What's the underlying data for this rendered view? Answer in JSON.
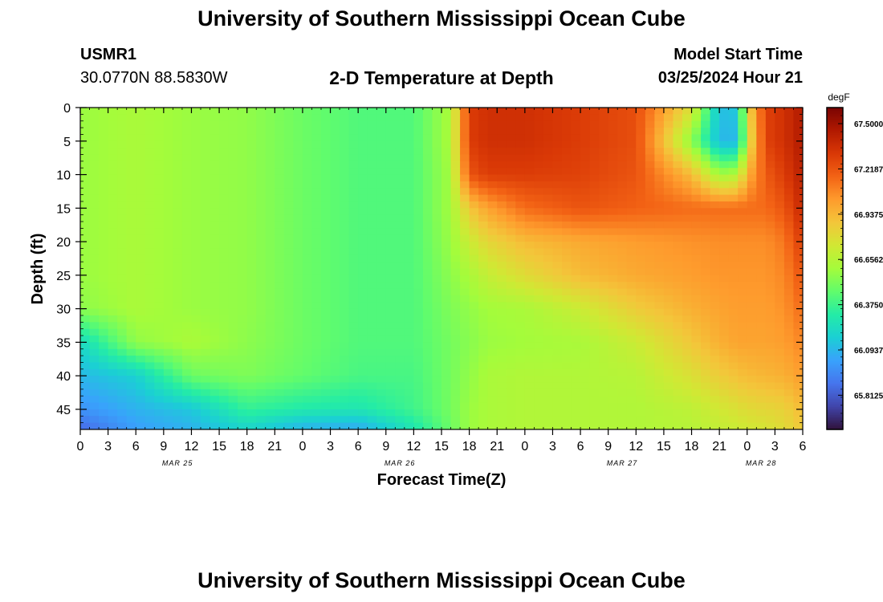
{
  "page": {
    "title": "University of Southern Mississippi Ocean Cube",
    "title_repeat": "University of Southern Mississippi Ocean Cube",
    "station_id": "USMR1",
    "coordinates": "30.0770N  88.5830W",
    "subtitle": "2-D Temperature at Depth",
    "model_start_label": "Model Start Time",
    "model_start_value": "03/25/2024 Hour 21"
  },
  "chart_data": {
    "type": "heatmap",
    "title": "2-D Temperature at Depth",
    "xlabel": "Forecast Time(Z)",
    "ylabel": "Depth (ft)",
    "x_hours_from_start": [
      0,
      78
    ],
    "xlim": [
      0,
      78
    ],
    "ylim": [
      0,
      48
    ],
    "x_tick_labels": [
      "0",
      "3",
      "6",
      "9",
      "12",
      "15",
      "18",
      "21",
      "0",
      "3",
      "6",
      "9",
      "12",
      "15",
      "18",
      "21",
      "0",
      "3",
      "6",
      "9",
      "12",
      "15",
      "18",
      "21",
      "0",
      "3",
      "6"
    ],
    "date_labels": [
      {
        "label": "MAR 25",
        "at_tick": 3.5
      },
      {
        "label": "MAR 26",
        "at_tick": 11.5
      },
      {
        "label": "MAR 27",
        "at_tick": 19.5
      },
      {
        "label": "MAR 28",
        "at_tick": 24.5
      }
    ],
    "y_ticks": [
      0,
      5,
      10,
      15,
      20,
      25,
      30,
      35,
      40,
      45
    ],
    "colorbar": {
      "unit": "degF",
      "min": 65.6,
      "max": 67.6,
      "labels": [
        "67.5000",
        "67.2187",
        "66.9375",
        "66.6562",
        "66.3750",
        "66.0937",
        "65.8125"
      ],
      "label_values": [
        67.5,
        67.21875,
        66.9375,
        66.65625,
        66.375,
        66.09375,
        65.8125
      ]
    },
    "colormap": [
      "#30123b",
      "#4145ab",
      "#4675ed",
      "#39a2fc",
      "#1bcfd4",
      "#24eca6",
      "#61fc6c",
      "#a4fc3b",
      "#d1e834",
      "#f3c63a",
      "#fe9b2d",
      "#f36315",
      "#d93806",
      "#b11901",
      "#7a0402"
    ],
    "depth_rows": [
      0,
      5,
      10,
      15,
      20,
      25,
      30,
      35,
      40,
      45,
      48
    ],
    "time_cols_hours": [
      0,
      6,
      12,
      18,
      24,
      30,
      36,
      40,
      42,
      44,
      48,
      54,
      60,
      66,
      69,
      71,
      72,
      74,
      76,
      78
    ],
    "values": [
      [
        66.58,
        66.62,
        66.58,
        66.56,
        66.48,
        66.42,
        66.42,
        66.62,
        67.3,
        67.35,
        67.35,
        67.3,
        67.24,
        66.78,
        66.12,
        66.15,
        66.8,
        67.28,
        67.35,
        67.45
      ],
      [
        66.58,
        66.62,
        66.58,
        66.56,
        66.48,
        66.42,
        66.42,
        66.62,
        67.3,
        67.35,
        67.35,
        67.3,
        67.24,
        66.55,
        66.1,
        66.1,
        66.72,
        67.28,
        67.35,
        67.45
      ],
      [
        66.58,
        66.62,
        66.58,
        66.56,
        66.48,
        66.42,
        66.42,
        66.6,
        67.22,
        67.3,
        67.3,
        67.28,
        67.22,
        66.92,
        66.6,
        66.65,
        66.95,
        67.2,
        67.3,
        67.42
      ],
      [
        66.58,
        66.62,
        66.58,
        66.56,
        66.48,
        66.42,
        66.42,
        66.6,
        66.88,
        67.0,
        67.15,
        67.22,
        67.18,
        67.15,
        67.15,
        67.15,
        67.15,
        67.15,
        67.22,
        67.38
      ],
      [
        66.58,
        66.62,
        66.58,
        66.56,
        66.48,
        66.42,
        66.42,
        66.58,
        66.72,
        66.82,
        66.92,
        66.98,
        67.02,
        67.05,
        67.06,
        67.06,
        67.06,
        67.06,
        67.12,
        67.3
      ],
      [
        66.58,
        66.62,
        66.58,
        66.56,
        66.48,
        66.42,
        66.42,
        66.55,
        66.62,
        66.7,
        66.8,
        66.92,
        66.98,
        67.02,
        67.04,
        67.04,
        67.04,
        67.04,
        67.08,
        67.22
      ],
      [
        66.55,
        66.62,
        66.58,
        66.56,
        66.48,
        66.42,
        66.42,
        66.52,
        66.56,
        66.6,
        66.62,
        66.72,
        66.86,
        66.96,
        67.0,
        67.02,
        67.02,
        67.02,
        67.05,
        67.15
      ],
      [
        66.22,
        66.56,
        66.62,
        66.55,
        66.48,
        66.42,
        66.42,
        66.5,
        66.54,
        66.58,
        66.6,
        66.62,
        66.72,
        66.88,
        66.96,
        67.0,
        67.0,
        67.0,
        67.02,
        67.08
      ],
      [
        66.1,
        66.18,
        66.48,
        66.52,
        66.46,
        66.4,
        66.4,
        66.5,
        66.56,
        66.62,
        66.64,
        66.64,
        66.66,
        66.78,
        66.86,
        66.9,
        66.92,
        66.94,
        66.96,
        67.02
      ],
      [
        65.98,
        66.08,
        66.15,
        66.35,
        66.3,
        66.28,
        66.38,
        66.5,
        66.58,
        66.62,
        66.64,
        66.64,
        66.64,
        66.68,
        66.74,
        66.78,
        66.8,
        66.82,
        66.84,
        66.92
      ],
      [
        65.85,
        66.02,
        66.08,
        66.2,
        66.08,
        66.05,
        66.28,
        66.48,
        66.58,
        66.62,
        66.64,
        66.64,
        66.64,
        66.66,
        66.7,
        66.72,
        66.74,
        66.76,
        66.8,
        66.88
      ]
    ]
  }
}
